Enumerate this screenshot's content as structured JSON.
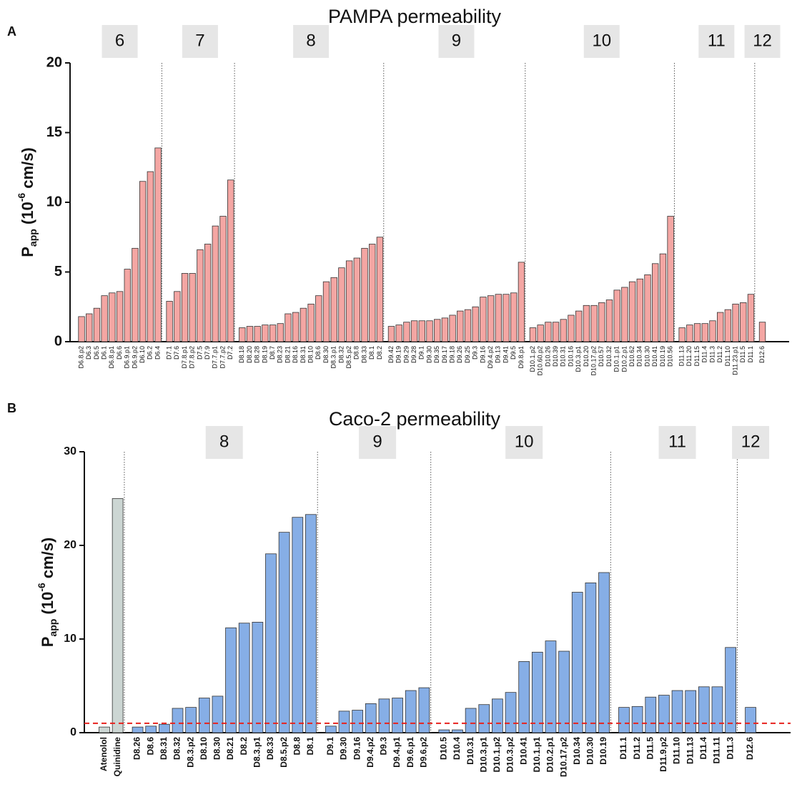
{
  "chart_data": [
    {
      "type": "bar",
      "panel": "A",
      "title": "PAMPA permeability",
      "ylabel_parts": [
        "P",
        "app",
        " (10",
        "-6",
        " cm/s)"
      ],
      "ylim": [
        0,
        20
      ],
      "yticks": [
        0,
        5,
        10,
        15,
        20
      ],
      "groups": [
        {
          "label": "6",
          "color": "#f4a6a3",
          "categories": [
            "D6.8.p2",
            "D6.3",
            "D6.5",
            "D6.1",
            "D6.8.p1",
            "D6.6",
            "D6.9.p1",
            "D6.9.p2",
            "D6.10",
            "D6.2",
            "D6.4"
          ],
          "values": [
            1.8,
            2.0,
            2.4,
            3.3,
            3.5,
            3.6,
            5.2,
            6.7,
            11.5,
            12.2,
            13.9
          ]
        },
        {
          "label": "7",
          "color": "#f4a6a3",
          "categories": [
            "D7.1",
            "D7.6",
            "D7.8.p1",
            "D7.8.p2",
            "D7.5",
            "D7.9",
            "D7.7.p1",
            "D7.7.p2",
            "D7.2"
          ],
          "values": [
            2.9,
            3.6,
            4.9,
            4.9,
            6.6,
            7.0,
            8.3,
            9.0,
            11.6
          ]
        },
        {
          "label": "8",
          "color": "#f4a6a3",
          "categories": [
            "D8.18",
            "D8.20",
            "D8.28",
            "D8.19",
            "D8.7",
            "D8.23",
            "D8.21",
            "D8.16",
            "D8.31",
            "D8.10",
            "D8.6",
            "D8.30",
            "D8.3.p1",
            "D8.32",
            "D8.5.p2",
            "D8.8",
            "D8.33",
            "D8.1",
            "D8.2"
          ],
          "values": [
            1.0,
            1.1,
            1.1,
            1.2,
            1.2,
            1.3,
            2.0,
            2.1,
            2.4,
            2.7,
            3.3,
            4.3,
            4.6,
            5.3,
            5.8,
            6.0,
            6.7,
            7.0,
            7.5
          ]
        },
        {
          "label": "9",
          "color": "#f4a6a3",
          "categories": [
            "D9.42",
            "D9.19",
            "D9.29",
            "D9.28",
            "D9.1",
            "D9.30",
            "D9.35",
            "D9.17",
            "D9.18",
            "D9.26",
            "D9.25",
            "D9.3",
            "D9.16",
            "D9.4.p2",
            "D9.13",
            "D9.41",
            "D9.5",
            "D9.8.p1"
          ],
          "values": [
            1.1,
            1.2,
            1.4,
            1.5,
            1.5,
            1.5,
            1.6,
            1.7,
            1.9,
            2.2,
            2.3,
            2.5,
            3.2,
            3.3,
            3.4,
            3.4,
            3.5,
            5.7
          ]
        },
        {
          "label": "10",
          "color": "#f4a6a3",
          "categories": [
            "D10.1.p2",
            "D10.60.p2",
            "D10.26",
            "D10.39",
            "D10.31",
            "D10.16",
            "D10.3.p1",
            "D10.20",
            "D10.17.p2",
            "D10.57",
            "D10.32",
            "D10.1.p1",
            "D10.2.p1",
            "D10.62",
            "D10.34",
            "D10.30",
            "D10.41",
            "D10.19",
            "D10.56"
          ],
          "values": [
            1.0,
            1.2,
            1.4,
            1.4,
            1.6,
            1.9,
            2.2,
            2.6,
            2.6,
            2.8,
            3.0,
            3.7,
            3.9,
            4.3,
            4.5,
            4.8,
            5.6,
            6.3,
            9.0
          ]
        },
        {
          "label": "11",
          "color": "#f4a6a3",
          "categories": [
            "D11.13",
            "D11.20",
            "D11.15",
            "D11.4",
            "D11.3",
            "D11.2",
            "D11.10",
            "D11.23.p1",
            "D11.5",
            "D11.1"
          ],
          "values": [
            1.0,
            1.2,
            1.3,
            1.3,
            1.5,
            2.1,
            2.3,
            2.7,
            2.8,
            3.4
          ]
        },
        {
          "label": "12",
          "color": "#f4a6a3",
          "categories": [
            "D12.6"
          ],
          "values": [
            1.4
          ]
        }
      ]
    },
    {
      "type": "bar",
      "panel": "B",
      "title": "Caco-2 permeability",
      "ylabel_parts": [
        "P",
        "app",
        " (10",
        "-6",
        " cm/s)"
      ],
      "ylim": [
        0,
        30
      ],
      "yticks": [
        0,
        10,
        20,
        30
      ],
      "reference_line": {
        "value": 1,
        "color": "#e8231e"
      },
      "groups": [
        {
          "color": "#ccd6d3",
          "categories": [
            "Atenolol",
            "Quinidine"
          ],
          "values": [
            0.6,
            25.0
          ]
        },
        {
          "label": "8",
          "color": "#86aee6",
          "categories": [
            "D8.26",
            "D8.6",
            "D8.31",
            "D8.32",
            "D8.3.p2",
            "D8.10",
            "D8.30",
            "D8.21",
            "D8.2",
            "D8.3.p1",
            "D8.33",
            "D8.5.p2",
            "D8.8",
            "D8.1"
          ],
          "values": [
            0.6,
            0.7,
            0.9,
            2.6,
            2.7,
            3.7,
            3.9,
            11.2,
            11.7,
            11.8,
            19.1,
            21.4,
            23.0,
            23.3
          ]
        },
        {
          "label": "9",
          "color": "#86aee6",
          "categories": [
            "D9.1",
            "D9.30",
            "D9.16",
            "D9.4.p2",
            "D9.3",
            "D9.4.p1",
            "D9.6.p1",
            "D9.6.p2"
          ],
          "values": [
            0.7,
            2.3,
            2.4,
            3.1,
            3.6,
            3.7,
            4.5,
            4.8
          ]
        },
        {
          "label": "10",
          "color": "#86aee6",
          "categories": [
            "D10.5",
            "D10.4",
            "D10.31",
            "D10.3.p1",
            "D10.1.p2",
            "D10.3.p2",
            "D10.41",
            "D10.1.p1",
            "D10.2.p1",
            "D10.17.p2",
            "D10.34",
            "D10.30",
            "D10.19"
          ],
          "values": [
            0.3,
            0.3,
            2.6,
            3.0,
            3.6,
            4.3,
            7.6,
            8.6,
            9.8,
            8.7,
            15.0,
            16.0,
            17.1
          ]
        },
        {
          "label": "11",
          "color": "#86aee6",
          "categories": [
            "D11.1",
            "D11.2",
            "D11.5",
            "D11.9.p2",
            "D11.10",
            "D11.13",
            "D11.4",
            "D11.11",
            "D11.3"
          ],
          "values": [
            2.7,
            2.8,
            3.8,
            4.0,
            4.5,
            4.5,
            4.9,
            4.9,
            9.1
          ]
        },
        {
          "label": "12",
          "color": "#86aee6",
          "categories": [
            "D12.6"
          ],
          "values": [
            2.7
          ]
        }
      ]
    }
  ]
}
